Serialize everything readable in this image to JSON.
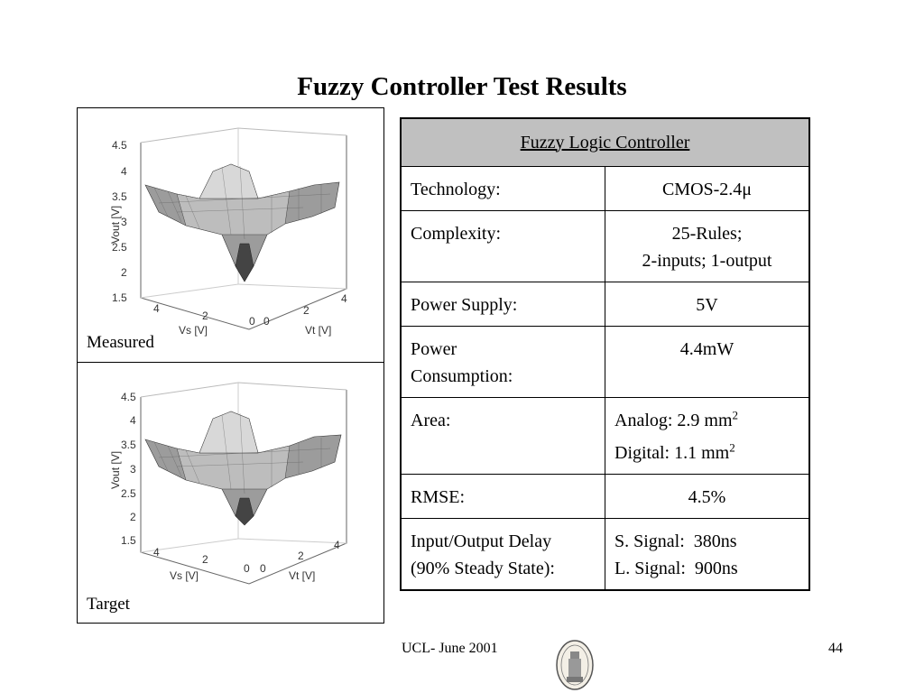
{
  "slide": {
    "title": "Fuzzy Controller Test Results",
    "footer_left": "UCL- June 2001",
    "page_number": "44"
  },
  "plots": {
    "measured": {
      "caption": "Measured",
      "zlabel": "Vout  [V]",
      "xlabel": "Vs  [V]",
      "ylabel": "Vt  [V]",
      "z_ticks": [
        "1.5",
        "2",
        "2.5",
        "3",
        "3.5",
        "4",
        "4.5"
      ],
      "x_ticks": [
        "4",
        "2",
        "0"
      ],
      "y_ticks": [
        "0",
        "2",
        "4"
      ]
    },
    "target": {
      "caption": "Target",
      "zlabel": "Vout  [V]",
      "xlabel": "Vs  [V]",
      "ylabel": "Vt  [V]",
      "z_ticks": [
        "1.5",
        "2",
        "2.5",
        "3",
        "3.5",
        "4",
        "4.5"
      ],
      "x_ticks": [
        "4",
        "2",
        "0"
      ],
      "y_ticks": [
        "0",
        "2",
        "4"
      ]
    }
  },
  "table": {
    "header": "Fuzzy Logic Controller",
    "rows": [
      {
        "label": "Technology:",
        "value": "CMOS-2.4μ"
      },
      {
        "label": "Complexity:",
        "value_line1": "25-Rules;",
        "value_line2": "2-inputs; 1-output"
      },
      {
        "label": "Power Supply:",
        "value": "5V"
      },
      {
        "label_line1": "Power",
        "label_line2": "Consumption:",
        "value": "4.4mW"
      },
      {
        "label": "Area:",
        "value_line1": "Analog: 2.9 mm",
        "value_line2": "Digital: 1.1 mm",
        "sup": "2"
      },
      {
        "label": "RMSE:",
        "value": "4.5%"
      },
      {
        "label_line1": "Input/Output Delay",
        "label_line2": "(90% Steady State):",
        "value_line1": "S. Signal:  380ns",
        "value_line2": "L. Signal:  900ns"
      }
    ]
  }
}
